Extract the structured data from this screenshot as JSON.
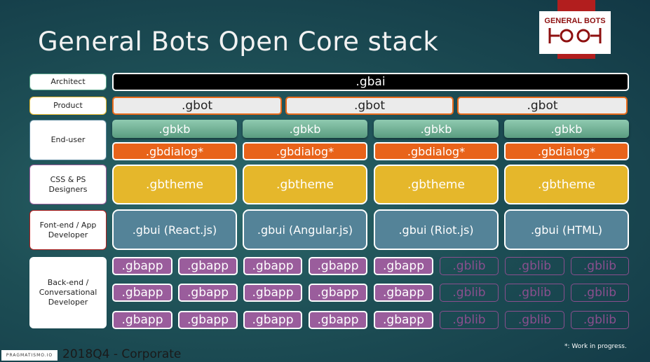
{
  "title": "General Bots Open Core stack",
  "logo": {
    "text": "GENERAL BOTS",
    "colors": {
      "band": "#b21e1e",
      "text": "#8e1010"
    }
  },
  "roles": [
    {
      "label": "Architect",
      "border": "#5aa58a"
    },
    {
      "label": "Product",
      "border": "#e5b72b"
    },
    {
      "label": "End-user",
      "border": "#548398"
    },
    {
      "label": "CSS & PS Designers",
      "border": "#9a5d9c"
    },
    {
      "label": "Font-end / App Developer",
      "border": "#b21e1e"
    },
    {
      "label": "Back-end / Conversational Developer",
      "border": "#ffffff"
    }
  ],
  "layers": {
    "gbai": [
      ".gbai"
    ],
    "gbot": [
      ".gbot",
      ".gbot",
      ".gbot"
    ],
    "gbkb": [
      ".gbkb",
      ".gbkb",
      ".gbkb",
      ".gbkb"
    ],
    "gbdialog": [
      ".gbdialog*",
      ".gbdialog*",
      ".gbdialog*",
      ".gbdialog*"
    ],
    "gbtheme": [
      ".gbtheme",
      ".gbtheme",
      ".gbtheme",
      ".gbtheme"
    ],
    "gbui": [
      ".gbui (React.js)",
      ".gbui (Angular.js)",
      ".gbui (Riot.js)",
      ".gbui (HTML)"
    ],
    "packages": [
      [
        ".gbapp",
        ".gbapp",
        ".gbapp",
        ".gbapp",
        ".gbapp",
        ".gblib",
        ".gblib",
        ".gblib"
      ],
      [
        ".gbapp",
        ".gbapp",
        ".gbapp",
        ".gbapp",
        ".gbapp",
        ".gblib",
        ".gblib",
        ".gblib"
      ],
      [
        ".gbapp",
        ".gbapp",
        ".gbapp",
        ".gbapp",
        ".gbapp",
        ".gblib",
        ".gblib",
        ".gblib"
      ]
    ]
  },
  "footer": {
    "brand": "PRAGMATISMO.IO",
    "text": "2018Q4 - Corporate",
    "note": "*: Work in progress."
  }
}
